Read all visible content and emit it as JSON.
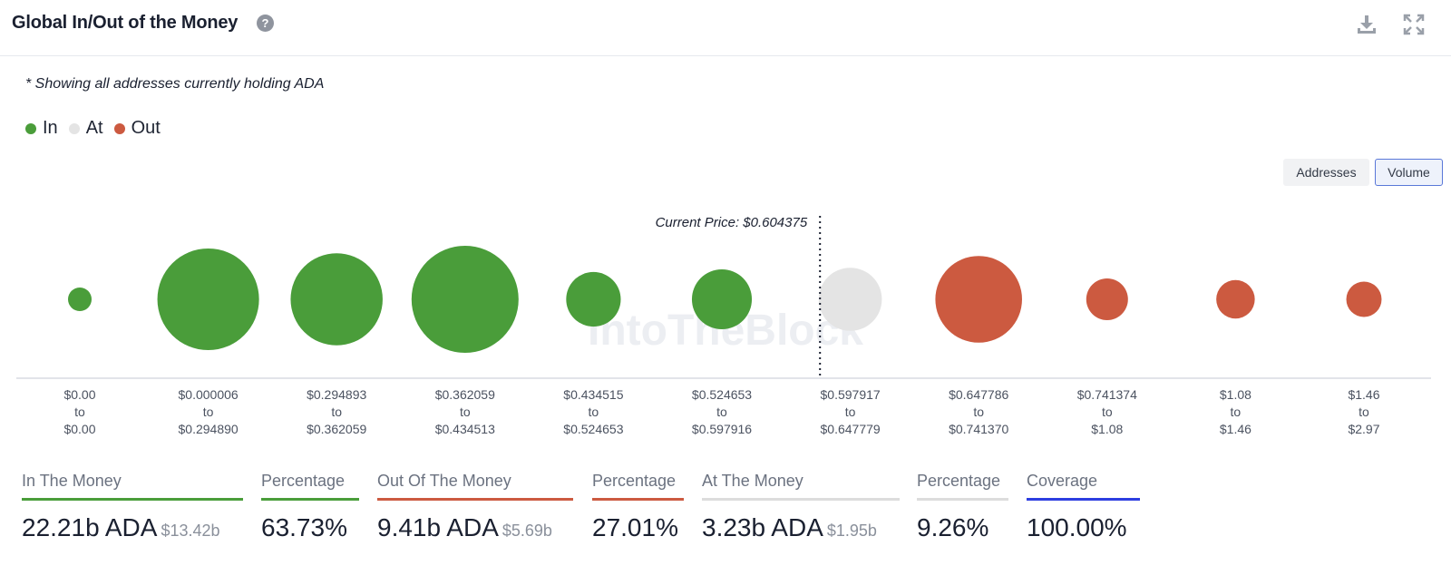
{
  "header": {
    "title": "Global In/Out of the Money",
    "help_glyph": "?",
    "download_icon": "download-icon",
    "fullscreen_icon": "fullscreen-icon"
  },
  "note": "* Showing all addresses currently holding ADA",
  "legend": [
    {
      "label": "In",
      "color": "#4a9d3a"
    },
    {
      "label": "At",
      "color": "#e4e4e4"
    },
    {
      "label": "Out",
      "color": "#cc5a40"
    }
  ],
  "toggles": {
    "addresses": "Addresses",
    "volume": "Volume",
    "selected": "Volume"
  },
  "watermark": "IntoTheBlock",
  "chart_data": {
    "type": "bubble",
    "current_price_label": "Current Price: $0.604375",
    "current_price": 0.604375,
    "bubbles": [
      {
        "range_low": "$0.00",
        "range_high": "$0.00",
        "status": "In",
        "size": 0.07
      },
      {
        "range_low": "$0.000006",
        "range_high": "$0.294890",
        "status": "In",
        "size": 0.95
      },
      {
        "range_low": "$0.294893",
        "range_high": "$0.362059",
        "status": "In",
        "size": 0.86
      },
      {
        "range_low": "$0.362059",
        "range_high": "$0.434513",
        "status": "In",
        "size": 1.0
      },
      {
        "range_low": "$0.434515",
        "range_high": "$0.524653",
        "status": "In",
        "size": 0.51
      },
      {
        "range_low": "$0.524653",
        "range_high": "$0.597916",
        "status": "In",
        "size": 0.56
      },
      {
        "range_low": "$0.597917",
        "range_high": "$0.647779",
        "status": "At",
        "size": 0.59
      },
      {
        "range_low": "$0.647786",
        "range_high": "$0.741370",
        "status": "Out",
        "size": 0.81
      },
      {
        "range_low": "$0.741374",
        "range_high": "$1.08",
        "status": "Out",
        "size": 0.39
      },
      {
        "range_low": "$1.08",
        "range_high": "$1.46",
        "status": "Out",
        "size": 0.36
      },
      {
        "range_low": "$1.46",
        "range_high": "$2.97",
        "status": "Out",
        "size": 0.33
      }
    ],
    "range_connector": "to"
  },
  "stats": [
    {
      "label": "In The Money",
      "value": "22.21b ADA",
      "sub": "$13.42b",
      "color": "#4a9d3a"
    },
    {
      "label": "Percentage",
      "value": "63.73%",
      "sub": "",
      "color": "#4a9d3a"
    },
    {
      "label": "Out Of The Money",
      "value": "9.41b ADA",
      "sub": "$5.69b",
      "color": "#cc5a40"
    },
    {
      "label": "Percentage",
      "value": "27.01%",
      "sub": "",
      "color": "#cc5a40"
    },
    {
      "label": "At The Money",
      "value": "3.23b ADA",
      "sub": "$1.95b",
      "color": "#dcdcdc"
    },
    {
      "label": "Percentage",
      "value": "9.26%",
      "sub": "",
      "color": "#dcdcdc"
    },
    {
      "label": "Coverage",
      "value": "100.00%",
      "sub": "",
      "color": "#2d3ee0"
    }
  ]
}
